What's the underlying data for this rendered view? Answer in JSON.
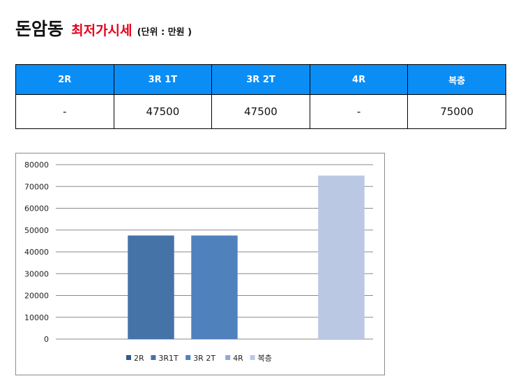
{
  "title": {
    "main": "돈암동",
    "sub": "최저가시세",
    "unit": "(단위 : 만원 )"
  },
  "table": {
    "headers": [
      "2R",
      "3R 1T",
      "3R 2T",
      "4R",
      "복층"
    ],
    "values": [
      "-",
      "47500",
      "47500",
      "-",
      "75000"
    ]
  },
  "colors": {
    "header_bg": "#0b8df6",
    "title_red": "#e3001b"
  },
  "chart_data": {
    "type": "bar",
    "categories": [
      "2R",
      "3R1T",
      "3R 2T",
      "4R",
      "복층"
    ],
    "values": [
      0,
      47500,
      47500,
      0,
      75000
    ],
    "colors": [
      "#2f5c8f",
      "#4572a7",
      "#4f81bd",
      "#93a9d2",
      "#bac8e3"
    ],
    "ylim": [
      0,
      80000
    ],
    "yticks": [
      "0",
      "10000",
      "20000",
      "30000",
      "40000",
      "50000",
      "60000",
      "70000",
      "80000"
    ],
    "grid": true,
    "legend_position": "bottom"
  }
}
